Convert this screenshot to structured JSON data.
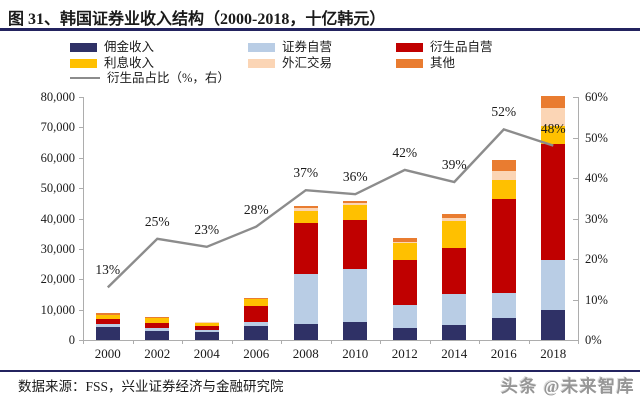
{
  "header": {
    "title": "图 31、韩国证券业收入结构（2000-2018，十亿韩元）"
  },
  "colors": {
    "commission": "#2F3166",
    "securities_prop": "#B9CDE5",
    "derivatives_prop": "#C00000",
    "interest": "#FFC000",
    "fx": "#FBD5B5",
    "other": "#E97C30",
    "derivatives_share_line": "#8C8C8C",
    "axis": "#ADADAD",
    "rule": "#23235F",
    "watermark": "#969696",
    "text": "#1A1A1A"
  },
  "legend": {
    "items": [
      {
        "key": "commission",
        "label": "佣金收入",
        "swatch": "box"
      },
      {
        "key": "securities_prop",
        "label": "证券自营",
        "swatch": "box"
      },
      {
        "key": "derivatives_prop",
        "label": "衍生品自营",
        "swatch": "box"
      },
      {
        "key": "interest",
        "label": "利息收入",
        "swatch": "box"
      },
      {
        "key": "fx",
        "label": "外汇交易",
        "swatch": "box"
      },
      {
        "key": "other",
        "label": "其他",
        "swatch": "box"
      },
      {
        "key": "derivatives_share",
        "label": "衍生品占比（%，右）",
        "swatch": "line"
      }
    ]
  },
  "chart_data": {
    "type": "bar",
    "subtype": "stacked-bars-with-line-overlay",
    "title": "韩国证券业收入结构（2000-2018，十亿韩元）",
    "unit": "十亿韩元",
    "categories": [
      "2000",
      "2002",
      "2004",
      "2006",
      "2008",
      "2010",
      "2012",
      "2014",
      "2016",
      "2018"
    ],
    "series": [
      {
        "key": "commission",
        "name": "佣金收入",
        "values": [
          4200,
          3100,
          2700,
          4700,
          5200,
          6000,
          4000,
          4900,
          7100,
          10000
        ]
      },
      {
        "key": "securities_prop",
        "name": "证券自营",
        "values": [
          1100,
          800,
          600,
          1100,
          16400,
          17300,
          7400,
          10400,
          8400,
          16500
        ]
      },
      {
        "key": "derivatives_prop",
        "name": "衍生品自营",
        "values": [
          1500,
          1800,
          1300,
          5500,
          17000,
          16300,
          14800,
          15000,
          30800,
          38000
        ]
      },
      {
        "key": "interest",
        "name": "利息收入",
        "values": [
          1400,
          1400,
          1100,
          2100,
          3900,
          4700,
          5700,
          8900,
          6400,
          5900
        ]
      },
      {
        "key": "fx",
        "name": "外汇交易",
        "values": [
          200,
          200,
          100,
          200,
          1000,
          700,
          500,
          1100,
          3000,
          6100
        ]
      },
      {
        "key": "other",
        "name": "其他",
        "values": [
          600,
          400,
          200,
          300,
          700,
          700,
          1200,
          1300,
          3500,
          3800
        ]
      }
    ],
    "line_series": {
      "key": "derivatives_share",
      "name": "衍生品占比（%，右）",
      "axis": "right",
      "unit": "%",
      "values": [
        13,
        25,
        23,
        28,
        37,
        36,
        42,
        39,
        52,
        48
      ],
      "data_labels": [
        "13%",
        "25%",
        "23%",
        "28%",
        "37%",
        "36%",
        "42%",
        "39%",
        "52%",
        "48%"
      ]
    },
    "left_axis": {
      "min": 0,
      "max": 80000,
      "step": 10000,
      "labels": [
        "0",
        "10,000",
        "20,000",
        "30,000",
        "40,000",
        "50,000",
        "60,000",
        "70,000",
        "80,000"
      ]
    },
    "right_axis": {
      "min": 0,
      "max": 60,
      "step": 10,
      "labels": [
        "0%",
        "10%",
        "20%",
        "30%",
        "40%",
        "50%",
        "60%"
      ]
    },
    "legend_position": "top",
    "grid": false
  },
  "footer": {
    "source": "数据来源：FSS，兴业证券经济与金融研究院",
    "watermark": "头条 @未来智库"
  }
}
